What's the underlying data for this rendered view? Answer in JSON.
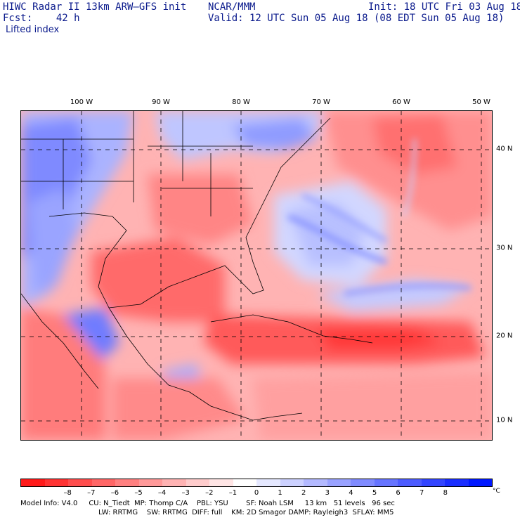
{
  "header": {
    "title_left": "HIWC Radar II 13km ARW–GFS init",
    "org": "NCAR/MMM",
    "init": "Init: 18 UTC Fri 03 Aug 18",
    "fcst": "Fcst:    42 h",
    "valid": "Valid: 12 UTC Sun 05 Aug 18 (08 EDT Sun 05 Aug 18)",
    "field": "Lifted index"
  },
  "map": {
    "lon_labels": [
      "100 W",
      "90 W",
      "80 W",
      "70 W",
      "60 W",
      "50 W"
    ],
    "lat_labels": [
      "40 N",
      "30 N",
      "20 N",
      "10 N"
    ]
  },
  "colorbar": {
    "colors": [
      "#ff1a1a",
      "#ff3333",
      "#ff4d4d",
      "#ff6666",
      "#ff8080",
      "#ff9999",
      "#ffb3b3",
      "#ffcccc",
      "#ffe5e5",
      "#ffffff",
      "#e5e8ff",
      "#ccd1ff",
      "#b3b9ff",
      "#99a2ff",
      "#808bff",
      "#6674ff",
      "#4d5cff",
      "#3345ff",
      "#1a2eff",
      "#0017ff"
    ],
    "ticks": [
      "–8",
      "–7",
      "–6",
      "–5",
      "–4",
      "–3",
      "–2",
      "–1",
      "0",
      "1",
      "2",
      "3",
      "4",
      "5",
      "6",
      "7",
      "8"
    ],
    "unit": "°C"
  },
  "footer": {
    "line1": "Model Info: V4.0     CU: N_Tiedt  MP: Thomp C/A    PBL: YSU        SF: Noah LSM     13 km   51 levels   96 sec",
    "line2": "LW: RRTMG    SW: RRTMG  DIFF: full    KM: 2D Smagor DAMP: Rayleigh3  SFLAY: MM5"
  }
}
